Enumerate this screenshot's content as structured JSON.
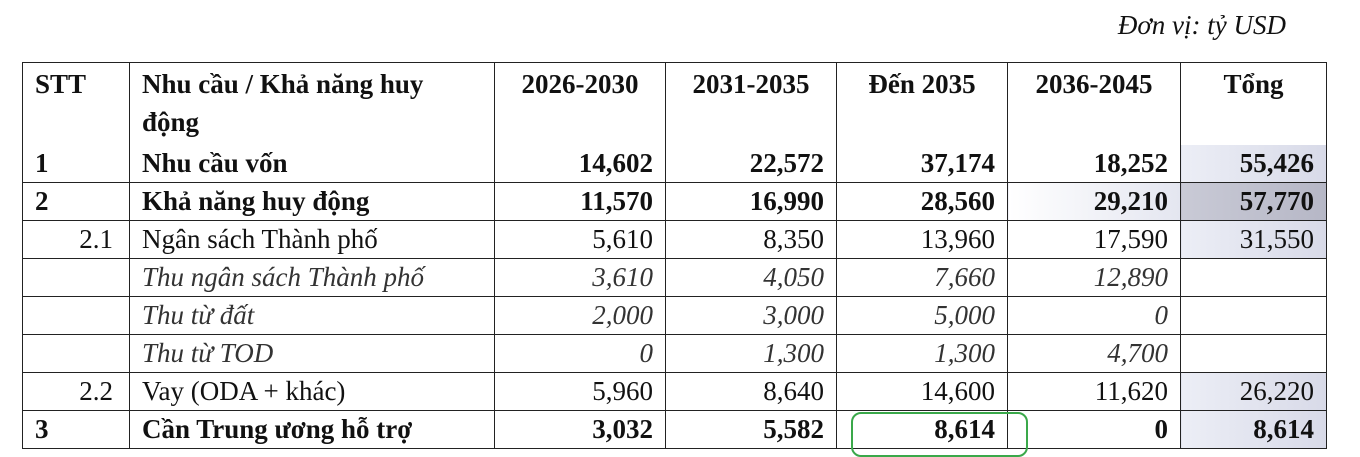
{
  "unit_note": "Đơn vị: tỷ USD",
  "table": {
    "header": [
      "STT",
      "Nhu cầu / Khả năng huy động",
      "2026-2030",
      "2031-2035",
      "Đến 2035",
      "2036-2045",
      "Tổng"
    ],
    "rows": [
      [
        "1",
        "Nhu cầu vốn",
        "14,602",
        "22,572",
        "37,174",
        "18,252",
        "55,426"
      ],
      [
        "2",
        "Khả năng huy động",
        "11,570",
        "16,990",
        "28,560",
        "29,210",
        "57,770"
      ],
      [
        "2.1",
        "Ngân sách Thành phố",
        "5,610",
        "8,350",
        "13,960",
        "17,590",
        "31,550"
      ],
      [
        null,
        "Thu ngân sách Thành phố",
        "3,610",
        "4,050",
        "7,660",
        "12,890",
        null
      ],
      [
        null,
        "Thu từ đất",
        "2,000",
        "3,000",
        "5,000",
        "0",
        null
      ],
      [
        null,
        "Thu từ TOD",
        "0",
        "1,300",
        "1,300",
        "4,700",
        null
      ],
      [
        "2.2",
        "Vay (ODA + khác)",
        "5,960",
        "8,640",
        "14,600",
        "11,620",
        "26,220"
      ],
      [
        "3",
        "Cần Trung ương hỗ trợ",
        "3,032",
        "5,582",
        "8,614",
        "0",
        "8,614"
      ]
    ]
  }
}
